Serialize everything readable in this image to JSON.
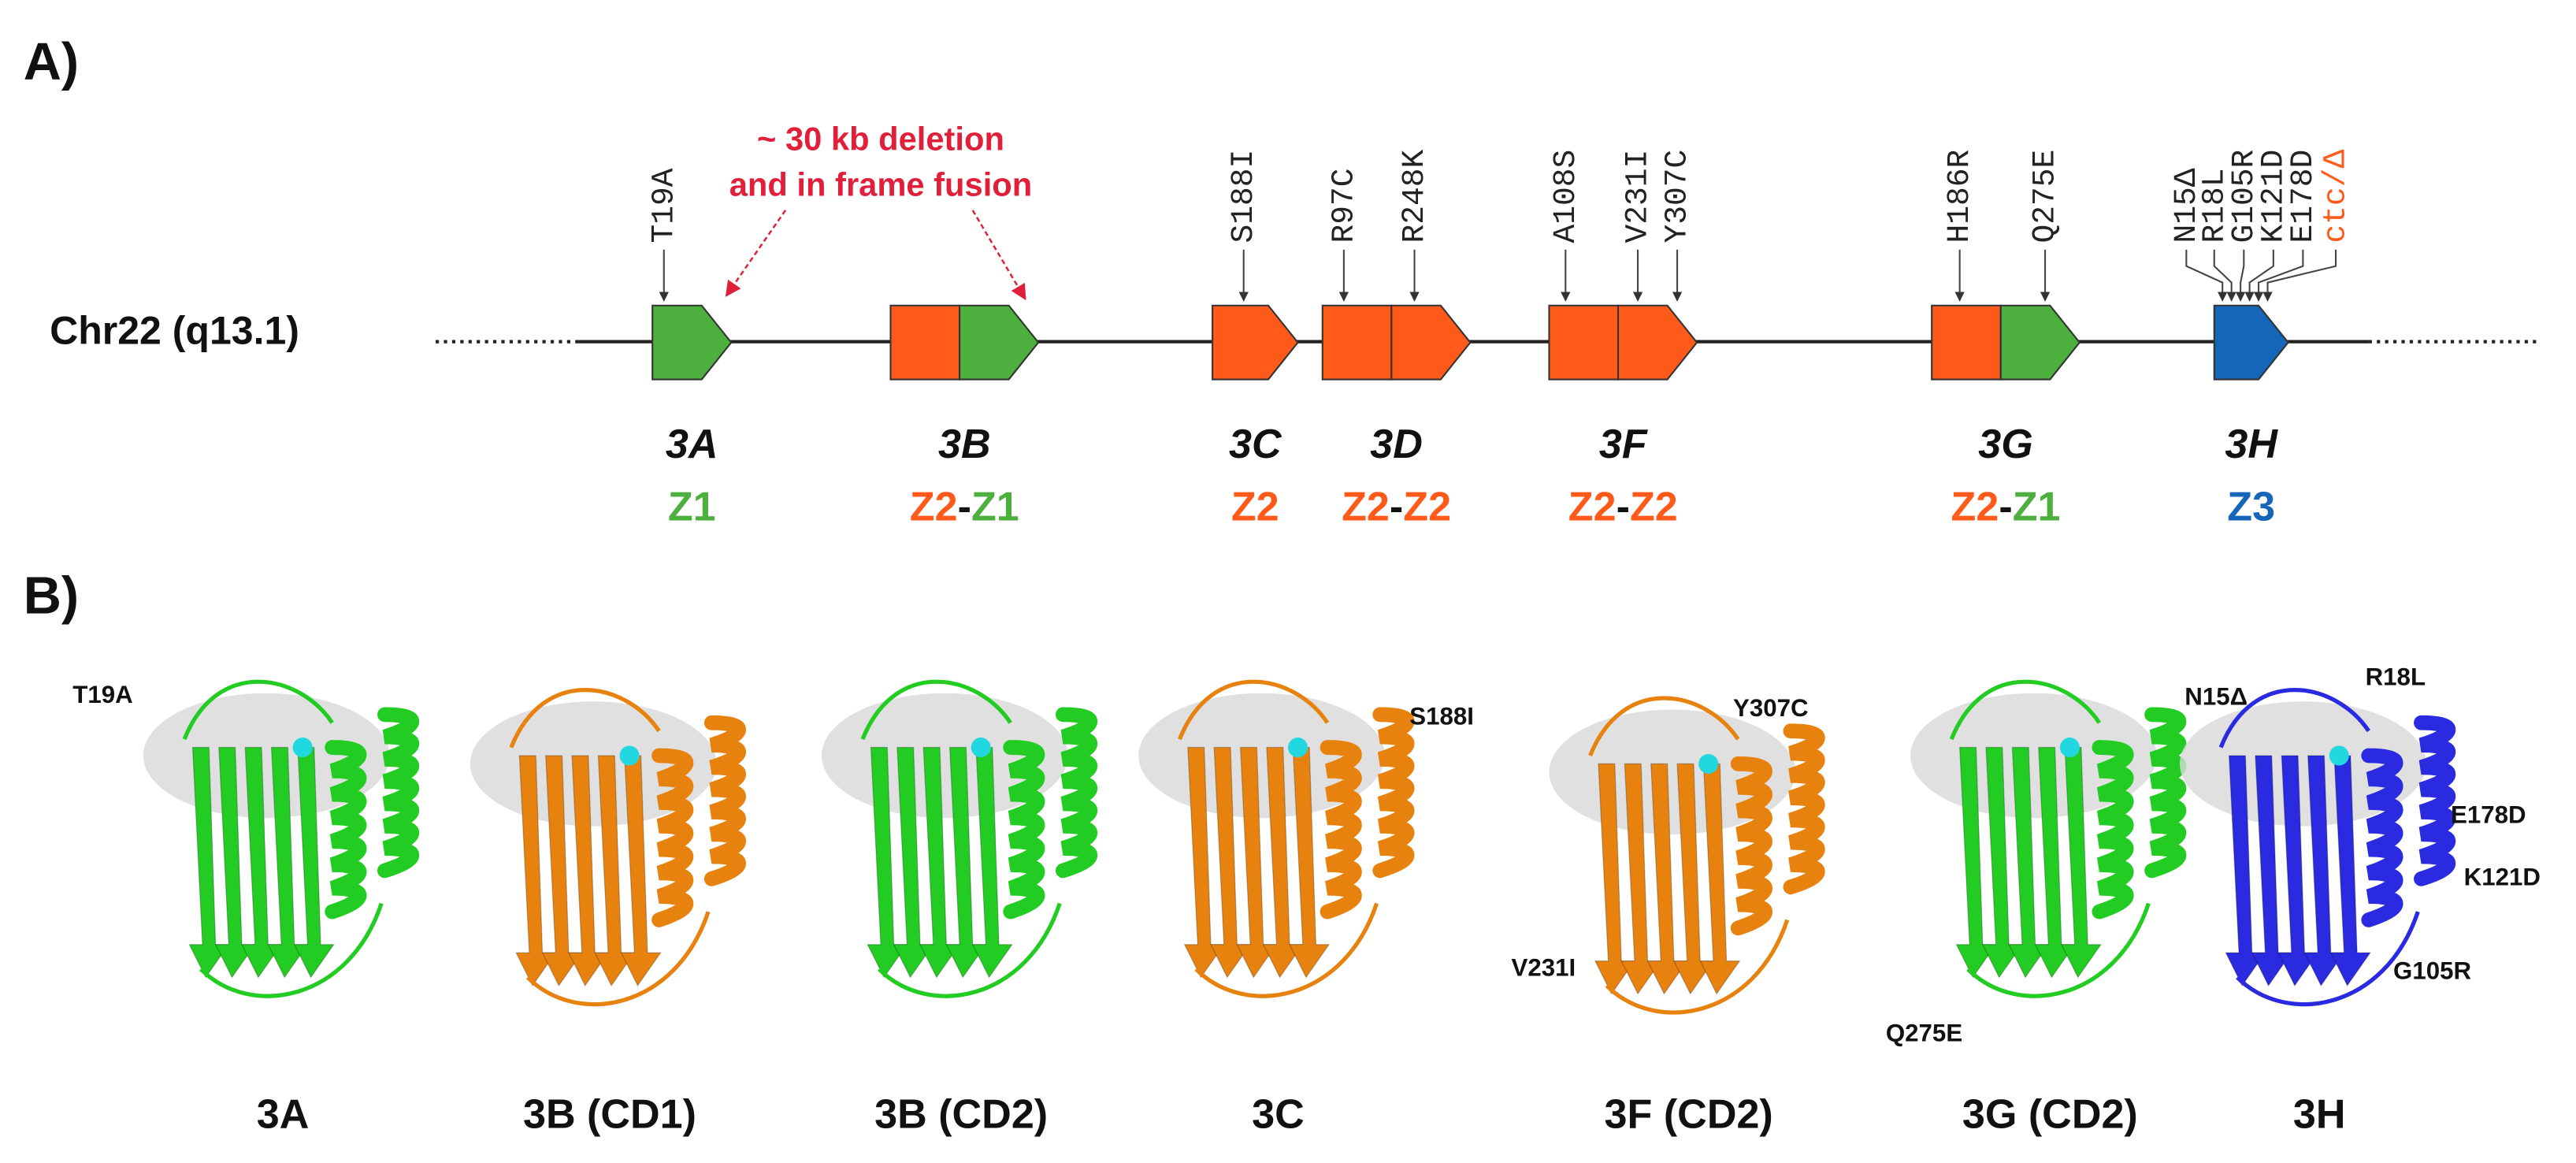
{
  "panel_a": {
    "label": "A)",
    "chromosome": "Chr22 (q13.1)",
    "deletion_note": [
      "~ 30 kb deletion",
      "and in frame fusion"
    ],
    "separator": "-",
    "zone_colors": {
      "Z1": "#4caf3e",
      "Z2": "#ff5a1a",
      "Z3": "#1565b8"
    },
    "genes": [
      {
        "name": "3A",
        "zones": [
          "Z1"
        ],
        "mutations": [
          {
            "label": "T19A",
            "color": "#222222"
          }
        ]
      },
      {
        "name": "3B",
        "zones": [
          "Z2",
          "Z1"
        ],
        "mutations": []
      },
      {
        "name": "3C",
        "zones": [
          "Z2"
        ],
        "mutations": [
          {
            "label": "S188I",
            "color": "#222222"
          }
        ]
      },
      {
        "name": "3D",
        "zones": [
          "Z2",
          "Z2"
        ],
        "mutations": [
          {
            "label": "R97C",
            "color": "#222222"
          },
          {
            "label": "R248K",
            "color": "#222222"
          }
        ]
      },
      {
        "name": "3F",
        "zones": [
          "Z2",
          "Z2"
        ],
        "mutations": [
          {
            "label": "A108S",
            "color": "#222222"
          },
          {
            "label": "V231I",
            "color": "#222222"
          },
          {
            "label": "Y307C",
            "color": "#222222"
          }
        ]
      },
      {
        "name": "3G",
        "zones": [
          "Z2",
          "Z1"
        ],
        "mutations": [
          {
            "label": "H186R",
            "color": "#222222"
          },
          {
            "label": "Q275E",
            "color": "#222222"
          }
        ]
      },
      {
        "name": "3H",
        "zones": [
          "Z3"
        ],
        "mutations": [
          {
            "label": "N15Δ",
            "color": "#222222"
          },
          {
            "label": "R18L",
            "color": "#222222"
          },
          {
            "label": "G105R",
            "color": "#222222"
          },
          {
            "label": "K121D",
            "color": "#222222"
          },
          {
            "label": "E178D",
            "color": "#222222"
          },
          {
            "label": "ctc/Δ",
            "color": "#ff5a1a"
          }
        ]
      }
    ]
  },
  "panel_b": {
    "label": "B)",
    "structures": [
      {
        "name": "3A",
        "color": "#22cc22",
        "mutations": [
          "T19A"
        ]
      },
      {
        "name": "3B (CD1)",
        "color": "#e8820f",
        "mutations": []
      },
      {
        "name": "3B (CD2)",
        "color": "#22cc22",
        "mutations": []
      },
      {
        "name": "3C",
        "color": "#e8820f",
        "mutations": [
          "S188I"
        ]
      },
      {
        "name": "3F (CD2)",
        "color": "#e8820f",
        "mutations": [
          "Y307C",
          "V231I"
        ]
      },
      {
        "name": "3G (CD2)",
        "color": "#22cc22",
        "mutations": [
          "Q275E"
        ]
      },
      {
        "name": "3H",
        "color": "#2a2ae0",
        "mutations": [
          "N15Δ",
          "R18L",
          "E178D",
          "K121D",
          "G105R"
        ]
      }
    ]
  }
}
